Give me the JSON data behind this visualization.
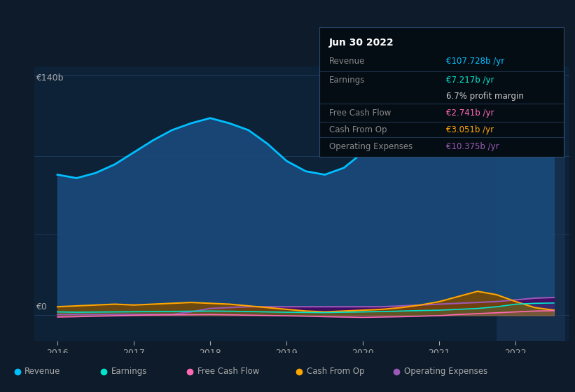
{
  "bg_color": "#0d1b2a",
  "plot_bg": "#0d2137",
  "highlight_col_color": "#1a3a5c",
  "years": [
    2016.0,
    2016.25,
    2016.5,
    2016.75,
    2017.0,
    2017.25,
    2017.5,
    2017.75,
    2018.0,
    2018.25,
    2018.5,
    2018.75,
    2019.0,
    2019.25,
    2019.5,
    2019.75,
    2020.0,
    2020.25,
    2020.5,
    2020.75,
    2021.0,
    2021.25,
    2021.5,
    2021.75,
    2022.0,
    2022.25,
    2022.5
  ],
  "revenue": [
    82,
    80,
    83,
    88,
    95,
    102,
    108,
    112,
    115,
    112,
    108,
    100,
    90,
    84,
    82,
    86,
    95,
    100,
    110,
    118,
    100,
    95,
    98,
    100,
    105,
    108,
    107
  ],
  "earnings": [
    2.0,
    1.8,
    1.9,
    2.0,
    2.1,
    2.2,
    2.3,
    2.4,
    2.5,
    2.4,
    2.2,
    2.0,
    1.8,
    1.7,
    1.6,
    1.8,
    2.0,
    2.2,
    2.5,
    2.8,
    3.0,
    3.5,
    4.0,
    5.0,
    6.5,
    7.0,
    7.2
  ],
  "free_cash_flow": [
    -1.0,
    -0.8,
    -0.5,
    -0.3,
    0.0,
    0.2,
    0.3,
    0.4,
    0.5,
    0.3,
    0.1,
    -0.1,
    -0.3,
    -0.5,
    -0.8,
    -1.0,
    -1.2,
    -1.0,
    -0.8,
    -0.5,
    -0.2,
    0.5,
    1.0,
    1.5,
    2.0,
    2.5,
    2.7
  ],
  "cash_from_op": [
    5,
    5.5,
    6,
    6.5,
    6,
    6.5,
    7,
    7.5,
    7,
    6.5,
    5.5,
    4.5,
    3.5,
    2.5,
    2.0,
    2.5,
    3.0,
    3.5,
    4.5,
    6.0,
    8.0,
    11.0,
    14.0,
    12.0,
    8.0,
    4.5,
    3.0
  ],
  "operating_expenses": [
    0.5,
    0.5,
    0.5,
    0.5,
    0.5,
    0.5,
    0.5,
    2.0,
    4.0,
    4.5,
    5.0,
    5.0,
    5.0,
    5.0,
    5.0,
    5.0,
    5.0,
    5.0,
    5.5,
    6.0,
    6.5,
    7.0,
    7.5,
    8.0,
    9.0,
    10.0,
    10.4
  ],
  "revenue_color": "#00bfff",
  "revenue_fill": "#1a4a7a",
  "earnings_color": "#00e5cc",
  "free_cash_flow_color": "#ff69b4",
  "cash_from_op_color": "#ffa500",
  "cash_from_op_fill": "#7a4a00",
  "operating_expenses_color": "#9b59b6",
  "operating_expenses_fill": "#4a0060",
  "ylabel_top": "€140b",
  "ylabel_bottom": "€0",
  "grid_color": "#1e3a5c",
  "text_color": "#aaaaaa",
  "tooltip_bg": "#050d14",
  "tooltip_border": "#2a4a6c",
  "tooltip_title": "Jun 30 2022",
  "tooltip_revenue_label": "Revenue",
  "tooltip_revenue_val": "€107.728b /yr",
  "tooltip_earnings_label": "Earnings",
  "tooltip_earnings_val": "€7.217b /yr",
  "tooltip_margin": "6.7% profit margin",
  "tooltip_fcf_label": "Free Cash Flow",
  "tooltip_fcf_val": "€2.741b /yr",
  "tooltip_cashop_label": "Cash From Op",
  "tooltip_cashop_val": "€3.051b /yr",
  "tooltip_opex_label": "Operating Expenses",
  "tooltip_opex_val": "€10.375b /yr",
  "xmin": 2015.7,
  "xmax": 2022.7,
  "ymin": -15,
  "ymax": 145,
  "highlight_x_start": 2021.75,
  "highlight_x_end": 2022.65,
  "xticks": [
    2016,
    2017,
    2018,
    2019,
    2020,
    2021,
    2022
  ],
  "xtick_labels": [
    "2016",
    "2017",
    "2018",
    "2019",
    "2020",
    "2021",
    "2022"
  ],
  "legend_items": [
    {
      "label": "Revenue",
      "color": "#00bfff"
    },
    {
      "label": "Earnings",
      "color": "#00e5cc"
    },
    {
      "label": "Free Cash Flow",
      "color": "#ff69b4"
    },
    {
      "label": "Cash From Op",
      "color": "#ffa500"
    },
    {
      "label": "Operating Expenses",
      "color": "#9b59b6"
    }
  ]
}
